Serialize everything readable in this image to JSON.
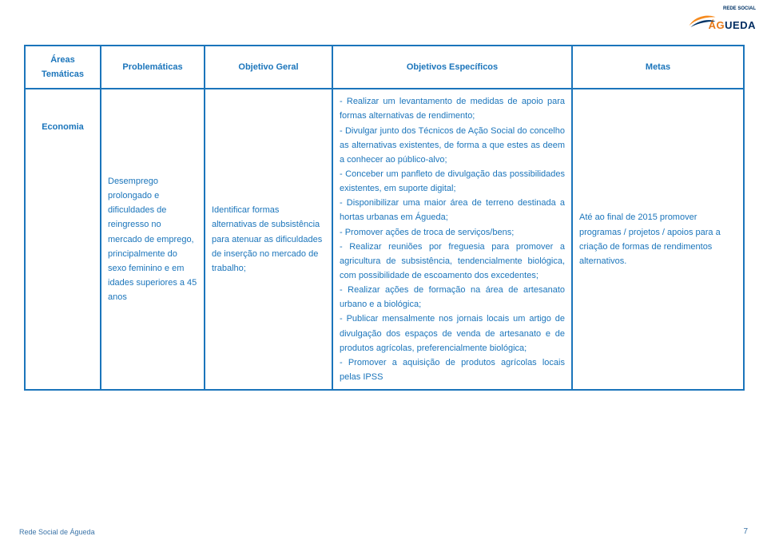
{
  "colors": {
    "border": "#1b75bb",
    "text": "#1b75bb",
    "footer": "#3b74a8",
    "swoosh_orange": "#f68b1f",
    "swoosh_blue": "#003366"
  },
  "logo": {
    "top_line": "REDE SOCIAL",
    "name_a": "ÁG",
    "name_b": "UEDA"
  },
  "headers": {
    "h1a": "Áreas",
    "h1b": "Temáticas",
    "h2": "Problemáticas",
    "h3": "Objetivo Geral",
    "h4": "Objetivos Específicos",
    "h5": "Metas"
  },
  "row": {
    "area": "Economia",
    "problematica": "Desemprego prolongado e dificuldades de reingresso no mercado de emprego, principalmente do sexo feminino e em idades superiores a 45 anos",
    "objetivo_geral": "Identificar formas alternativas de subsistência para atenuar as dificuldades de inserção no mercado de trabalho;",
    "objetivos_especificos": "- Realizar um levantamento de medidas de apoio para formas alternativas de rendimento;\n- Divulgar junto dos Técnicos de Ação Social do concelho as alternativas existentes, de forma a que estes as deem a conhecer ao público-alvo;\n- Conceber um panfleto de divulgação das possibilidades existentes, em suporte digital;\n- Disponibilizar uma maior área de terreno destinada a hortas urbanas em Águeda;\n- Promover ações de troca de serviços/bens;\n- Realizar reuniões por freguesia para promover a agricultura de subsistência, tendencialmente biológica, com possibilidade de escoamento dos excedentes;\n- Realizar ações de formação na área de artesanato urbano e a biológica;\n- Publicar mensalmente nos jornais locais um artigo de divulgação dos espaços de venda de artesanato e de produtos agrícolas, preferencialmente biológica;\n- Promover a aquisição de produtos agrícolas locais pelas IPSS",
    "metas": "Até ao final de 2015 promover programas / projetos / apoios para a criação de formas de rendimentos alternativos."
  },
  "footer": {
    "left": "Rede Social de Águeda",
    "page": "7"
  }
}
